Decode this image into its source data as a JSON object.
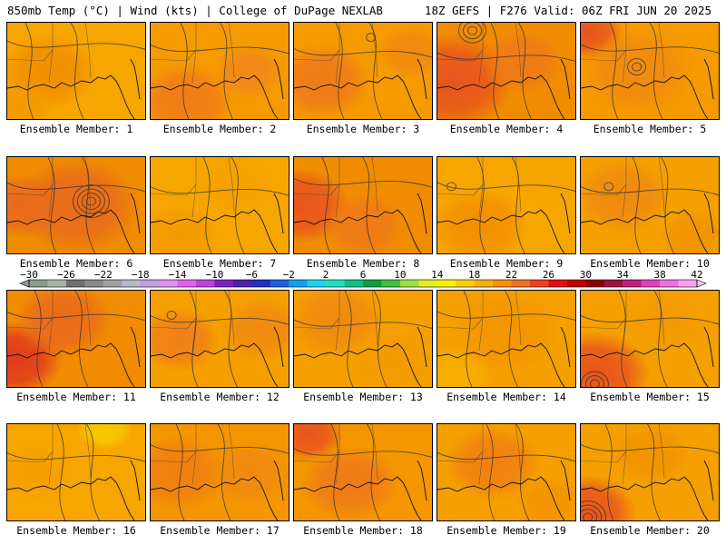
{
  "header": {
    "left": "850mb Temp (°C) | Wind (kts) | College of DuPage NEXLAB",
    "right": "18Z GEFS | F276 Valid: 06Z FRI JUN 20 2025"
  },
  "members": [
    {
      "label": "Ensemble Member: 1",
      "base": "#f7a600",
      "blobs": [
        [
          0.3,
          0.5,
          0.35,
          "#f08f00"
        ],
        [
          0.1,
          0.85,
          0.25,
          "#f39a00"
        ]
      ],
      "lows": []
    },
    {
      "label": "Ensemble Member: 2",
      "base": "#f59a00",
      "blobs": [
        [
          0.25,
          0.8,
          0.35,
          "#f07c18"
        ],
        [
          0.7,
          0.5,
          0.25,
          "#f0881a"
        ]
      ],
      "lows": []
    },
    {
      "label": "Ensemble Member: 3",
      "base": "#f59a00",
      "blobs": [
        [
          0.2,
          0.6,
          0.35,
          "#ef7a1a"
        ],
        [
          0.85,
          0.3,
          0.25,
          "#f08a10"
        ]
      ],
      "lows": [
        [
          0.55,
          0.15,
          1
        ]
      ]
    },
    {
      "label": "Ensemble Member: 4",
      "base": "#f08c00",
      "blobs": [
        [
          0.1,
          0.6,
          0.45,
          "#e8541e"
        ],
        [
          0.6,
          0.4,
          0.3,
          "#ef7a18"
        ]
      ],
      "lows": [
        [
          0.25,
          0.08,
          3
        ]
      ]
    },
    {
      "label": "Ensemble Member: 5",
      "base": "#f59a00",
      "blobs": [
        [
          0.05,
          0.1,
          0.25,
          "#e8541e"
        ],
        [
          0.4,
          0.5,
          0.4,
          "#f08a10"
        ]
      ],
      "lows": [
        [
          0.4,
          0.45,
          2
        ]
      ]
    },
    {
      "label": "Ensemble Member: 6",
      "base": "#f08c00",
      "blobs": [
        [
          0.5,
          0.5,
          0.45,
          "#e86a1c"
        ],
        [
          0.1,
          0.5,
          0.3,
          "#ea6a1c"
        ]
      ],
      "lows": [
        [
          0.6,
          0.45,
          4
        ]
      ]
    },
    {
      "label": "Ensemble Member: 7",
      "base": "#f7a600",
      "blobs": [
        [
          0.2,
          0.8,
          0.3,
          "#f39a00"
        ],
        [
          0.6,
          0.3,
          0.3,
          "#f5a200"
        ]
      ],
      "lows": []
    },
    {
      "label": "Ensemble Member: 8",
      "base": "#f08c00",
      "blobs": [
        [
          0.05,
          0.5,
          0.35,
          "#e8541e"
        ],
        [
          0.5,
          0.7,
          0.3,
          "#ef7a18"
        ]
      ],
      "lows": []
    },
    {
      "label": "Ensemble Member: 9",
      "base": "#f7a600",
      "blobs": [
        [
          0.3,
          0.7,
          0.35,
          "#f29000"
        ],
        [
          0.8,
          0.2,
          0.3,
          "#f5a400"
        ]
      ],
      "lows": [
        [
          0.1,
          0.3,
          1
        ]
      ]
    },
    {
      "label": "Ensemble Member: 10",
      "base": "#f5a000",
      "blobs": [
        [
          0.3,
          0.4,
          0.35,
          "#f08a10"
        ],
        [
          0.8,
          0.8,
          0.25,
          "#f29400"
        ]
      ],
      "lows": [
        [
          0.2,
          0.3,
          1
        ]
      ]
    },
    {
      "label": "Ensemble Member: 11",
      "base": "#f08c00",
      "blobs": [
        [
          0.05,
          0.7,
          0.35,
          "#e03a1e"
        ],
        [
          0.4,
          0.3,
          0.35,
          "#ea6a1c"
        ]
      ],
      "lows": []
    },
    {
      "label": "Ensemble Member: 12",
      "base": "#f5a000",
      "blobs": [
        [
          0.2,
          0.5,
          0.3,
          "#ef8018"
        ],
        [
          0.8,
          0.4,
          0.3,
          "#f08a10"
        ]
      ],
      "lows": [
        [
          0.15,
          0.25,
          1
        ]
      ]
    },
    {
      "label": "Ensemble Member: 13",
      "base": "#f5a000",
      "blobs": [
        [
          0.3,
          0.3,
          0.35,
          "#f08a10"
        ],
        [
          0.7,
          0.7,
          0.3,
          "#f39a00"
        ]
      ],
      "lows": []
    },
    {
      "label": "Ensemble Member: 14",
      "base": "#f5a000",
      "blobs": [
        [
          0.5,
          0.4,
          0.4,
          "#f39600"
        ],
        [
          0.1,
          0.9,
          0.3,
          "#f7b000"
        ]
      ],
      "lows": []
    },
    {
      "label": "Ensemble Member: 15",
      "base": "#f5a000",
      "blobs": [
        [
          0.1,
          0.85,
          0.4,
          "#e8541e"
        ],
        [
          0.6,
          0.3,
          0.3,
          "#f39a00"
        ]
      ],
      "lows": [
        [
          0.1,
          0.95,
          3
        ]
      ]
    },
    {
      "label": "Ensemble Member: 16",
      "base": "#f7a600",
      "blobs": [
        [
          0.7,
          0.05,
          0.2,
          "#f7c800"
        ],
        [
          0.2,
          0.5,
          0.3,
          "#f5a000"
        ]
      ],
      "lows": []
    },
    {
      "label": "Ensemble Member: 17",
      "base": "#f39600",
      "blobs": [
        [
          0.2,
          0.5,
          0.35,
          "#f08010"
        ],
        [
          0.7,
          0.5,
          0.3,
          "#f08a10"
        ]
      ],
      "lows": []
    },
    {
      "label": "Ensemble Member: 18",
      "base": "#f39600",
      "blobs": [
        [
          0.1,
          0.1,
          0.25,
          "#e8541e"
        ],
        [
          0.4,
          0.6,
          0.35,
          "#ef7a18"
        ]
      ],
      "lows": []
    },
    {
      "label": "Ensemble Member: 19",
      "base": "#f5a000",
      "blobs": [
        [
          0.4,
          0.4,
          0.35,
          "#f08010"
        ],
        [
          0.8,
          0.8,
          0.25,
          "#f29400"
        ]
      ],
      "lows": []
    },
    {
      "label": "Ensemble Member: 20",
      "base": "#f5a000",
      "blobs": [
        [
          0.05,
          0.9,
          0.35,
          "#e8541e"
        ],
        [
          0.5,
          0.3,
          0.3,
          "#f29400"
        ]
      ],
      "lows": [
        [
          0.05,
          0.95,
          4
        ]
      ]
    }
  ],
  "colorbar": {
    "ticks": [
      "−30",
      "−26",
      "−22",
      "−18",
      "−14",
      "−10",
      "−6",
      "−2",
      "2",
      "6",
      "10",
      "14",
      "18",
      "22",
      "26",
      "30",
      "34",
      "38",
      "42"
    ],
    "colors": [
      "#8c9c8c",
      "#a8b4a8",
      "#707070",
      "#8a8a8a",
      "#a0a0a0",
      "#b8b8c8",
      "#c0a0e0",
      "#e090f0",
      "#e060f0",
      "#c040e0",
      "#8020c0",
      "#5020b0",
      "#2030c0",
      "#2060e0",
      "#10a0f0",
      "#20d0f0",
      "#20e0c0",
      "#10c080",
      "#10a040",
      "#40c040",
      "#a0e040",
      "#e0f020",
      "#f8f000",
      "#f8d000",
      "#f8b000",
      "#f89000",
      "#f07020",
      "#f04020",
      "#e01010",
      "#c00000",
      "#900000",
      "#a01040",
      "#c02080",
      "#e040c0",
      "#f070e0",
      "#f8a0f0"
    ]
  }
}
